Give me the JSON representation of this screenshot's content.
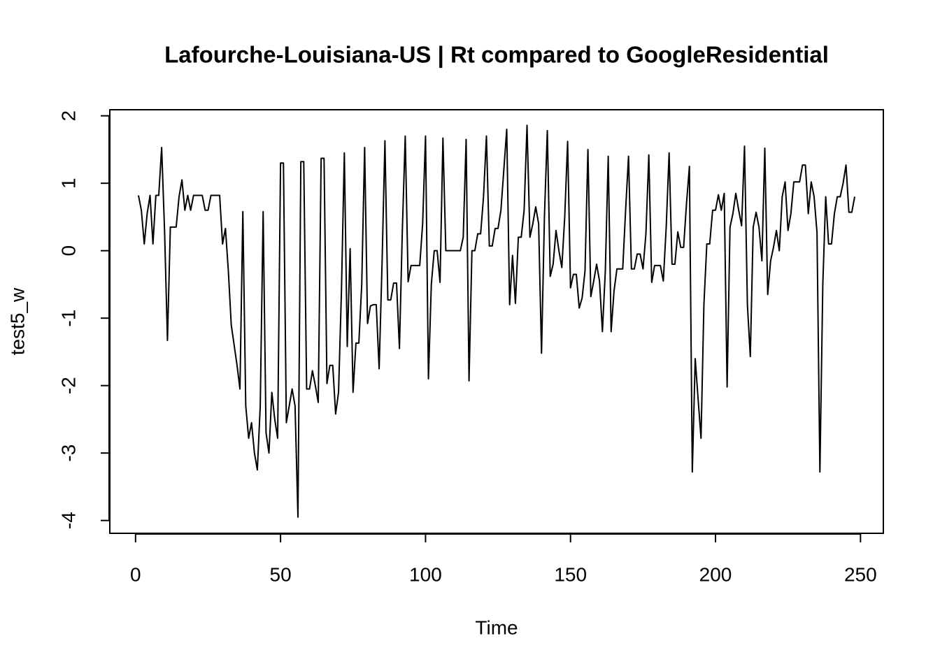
{
  "chart_data": {
    "type": "line",
    "title": "Lafourche-Louisiana-US | Rt compared to GoogleResidential",
    "xlabel": "Time",
    "ylabel": "test5_w",
    "x": [
      1,
      2,
      3,
      4,
      5,
      6,
      7,
      8,
      9,
      10,
      11,
      12,
      13,
      14,
      15,
      16,
      17,
      18,
      19,
      20,
      21,
      22,
      23,
      24,
      25,
      26,
      27,
      28,
      29,
      30,
      31,
      32,
      33,
      34,
      35,
      36,
      37,
      38,
      39,
      40,
      41,
      42,
      43,
      44,
      45,
      46,
      47,
      48,
      49,
      50,
      51,
      52,
      53,
      54,
      55,
      56,
      57,
      58,
      59,
      60,
      61,
      62,
      63,
      64,
      65,
      66,
      67,
      68,
      69,
      70,
      71,
      72,
      73,
      74,
      75,
      76,
      77,
      78,
      79,
      80,
      81,
      82,
      83,
      84,
      85,
      86,
      87,
      88,
      89,
      90,
      91,
      92,
      93,
      94,
      95,
      96,
      97,
      98,
      99,
      100,
      101,
      102,
      103,
      104,
      105,
      106,
      107,
      108,
      109,
      110,
      111,
      112,
      113,
      114,
      115,
      116,
      117,
      118,
      119,
      120,
      121,
      122,
      123,
      124,
      125,
      126,
      127,
      128,
      129,
      130,
      131,
      132,
      133,
      134,
      135,
      136,
      137,
      138,
      139,
      140,
      141,
      142,
      143,
      144,
      145,
      146,
      147,
      148,
      149,
      150,
      151,
      152,
      153,
      154,
      155,
      156,
      157,
      158,
      159,
      160,
      161,
      162,
      163,
      164,
      165,
      166,
      167,
      168,
      169,
      170,
      171,
      172,
      173,
      174,
      175,
      176,
      177,
      178,
      179,
      180,
      181,
      182,
      183,
      184,
      185,
      186,
      187,
      188,
      189,
      190,
      191,
      192,
      193,
      194,
      195,
      196,
      197,
      198,
      199,
      200,
      201,
      202,
      203,
      204,
      205,
      206,
      207,
      208,
      209,
      210,
      211,
      212,
      213,
      214,
      215,
      216,
      217,
      218,
      219,
      220,
      221,
      222,
      223,
      224,
      225,
      226,
      227,
      228,
      229,
      230,
      231,
      232,
      233,
      234,
      235,
      236,
      237,
      238,
      239,
      240,
      241,
      242,
      243,
      244,
      245,
      246,
      247,
      248
    ],
    "series": [
      {
        "name": "test5_w",
        "color": "#000000",
        "values": [
          0.82,
          0.6,
          0.1,
          0.55,
          0.82,
          0.1,
          0.82,
          0.82,
          1.53,
          0.3,
          -1.33,
          0.35,
          0.35,
          0.35,
          0.8,
          1.05,
          0.6,
          0.82,
          0.6,
          0.82,
          0.82,
          0.82,
          0.82,
          0.6,
          0.6,
          0.82,
          0.82,
          0.82,
          0.82,
          0.1,
          0.33,
          -0.3,
          -1.1,
          -1.4,
          -1.7,
          -2.05,
          0.58,
          -2.3,
          -2.78,
          -2.55,
          -3.0,
          -3.25,
          -2.3,
          0.58,
          -2.7,
          -3.0,
          -2.1,
          -2.5,
          -2.78,
          1.3,
          1.3,
          -2.55,
          -2.3,
          -2.05,
          -2.3,
          -3.95,
          1.32,
          1.32,
          -2.05,
          -2.05,
          -1.78,
          -2.0,
          -2.25,
          1.37,
          1.37,
          -1.97,
          -1.7,
          -1.7,
          -2.42,
          -2.1,
          -0.6,
          1.45,
          -1.42,
          0.03,
          -2.1,
          -1.37,
          -1.37,
          -0.5,
          1.53,
          -1.08,
          -0.82,
          -0.8,
          -0.8,
          -1.75,
          -0.2,
          1.63,
          -0.73,
          -0.73,
          -0.48,
          -0.48,
          -1.45,
          0.3,
          1.7,
          -0.46,
          -0.22,
          -0.22,
          -0.22,
          -0.22,
          0.4,
          1.7,
          -1.9,
          -0.5,
          0.0,
          0.0,
          -0.47,
          1.67,
          0.0,
          0.0,
          0.0,
          0.0,
          0.0,
          0.0,
          0.2,
          1.65,
          -1.93,
          0.0,
          0.0,
          0.25,
          0.25,
          0.8,
          1.7,
          0.07,
          0.07,
          0.33,
          0.33,
          0.6,
          1.2,
          1.8,
          -0.8,
          -0.07,
          -0.78,
          0.2,
          0.2,
          0.6,
          1.86,
          0.2,
          0.4,
          0.65,
          0.4,
          -1.52,
          0.5,
          1.78,
          -0.38,
          -0.2,
          0.3,
          0.0,
          -0.25,
          0.5,
          1.62,
          -0.55,
          -0.35,
          -0.35,
          -0.85,
          -0.7,
          -0.3,
          1.5,
          -0.68,
          -0.45,
          -0.2,
          -0.45,
          -1.2,
          -0.3,
          1.4,
          -1.2,
          -0.6,
          -0.27,
          -0.27,
          -0.27,
          0.6,
          1.4,
          -0.27,
          -0.27,
          -0.05,
          -0.05,
          -0.27,
          0.25,
          1.42,
          -0.47,
          -0.22,
          -0.22,
          -0.22,
          -0.45,
          0.35,
          1.45,
          -0.2,
          -0.2,
          0.28,
          0.05,
          0.05,
          0.7,
          1.25,
          -3.28,
          -1.6,
          -2.2,
          -2.78,
          -0.8,
          0.1,
          0.1,
          0.6,
          0.6,
          0.83,
          0.6,
          0.85,
          -2.02,
          0.35,
          0.55,
          0.85,
          0.6,
          0.37,
          1.55,
          -0.8,
          -1.57,
          0.35,
          0.57,
          0.35,
          -0.15,
          1.52,
          -0.65,
          -0.15,
          0.05,
          0.3,
          0.0,
          0.8,
          1.02,
          0.3,
          0.55,
          1.02,
          1.02,
          1.02,
          1.27,
          1.27,
          0.55,
          1.02,
          0.8,
          0.27,
          -3.28,
          -0.5,
          0.8,
          0.1,
          0.1,
          0.55,
          0.8,
          0.8,
          1.0,
          1.27,
          0.57,
          0.57,
          0.8
        ]
      }
    ],
    "xlim": [
      -8.88,
      257.88
    ],
    "ylim": [
      -4.19,
      2.09
    ],
    "xticks": [
      0,
      50,
      100,
      150,
      200,
      250
    ],
    "yticks": [
      -4,
      -3,
      -2,
      -1,
      0,
      1,
      2
    ]
  }
}
